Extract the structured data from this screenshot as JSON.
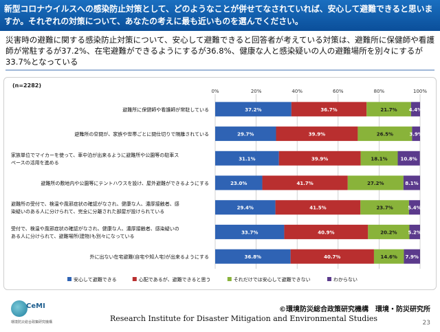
{
  "header": {
    "question": "新型コロナウイルスへの感染防止対策として、どのようなことが併せてなされていれば、安心して避難できると思いますか。それぞれの対策について、あなたの考えに最も近いものを選んでください。"
  },
  "summary": "災害時の避難に関する感染防止対策について、安心して避難できると回答者が考えている対策は、避難所に保健師や看護師が常駐するが37.2%、在宅避難ができるようにするが36.8%、健康な人と感染疑いの人の避難場所を別々にするが33.7%となっている",
  "chart_data": {
    "type": "bar",
    "orientation": "horizontal",
    "stacked": true,
    "sample_note": "(n=2282)",
    "x_ticks": [
      "0%",
      "20%",
      "40%",
      "60%",
      "80%",
      "100%"
    ],
    "xlim": [
      0,
      100
    ],
    "categories": [
      [
        "避難所に保健師や看護師が常駐している"
      ],
      [
        "避難所の空間が、家族や世帯ごとに間仕切りで隔離されている"
      ],
      [
        "家族単位でマイカーを使って、車中泊が出来るように避難所や公園等の駐車ス",
        "ペースの活用を進める"
      ],
      [
        "避難所の敷地内や公園等にテントハウスを設け、屋外避難ができるようにする"
      ],
      [
        "避難所の受付で、検温や風邪症状の確認がなされ、健康な人、濃厚接触者、感",
        "染疑いのある人に分けられて、完全に分離された部屋が設けられている"
      ],
      [
        "受付で、検温や風邪症状の確認がなされ、健康な人、濃厚接触者、感染疑いの",
        "ある人に分けられて、避難場所(建物)も別々になっている"
      ],
      [
        "外に出ない在宅避難(自宅や知人宅)が出来るようにする"
      ]
    ],
    "series": [
      {
        "name": "安心して避難できる",
        "color": "#2f63b4",
        "values": [
          37.2,
          29.7,
          31.1,
          23.0,
          29.4,
          33.7,
          36.8
        ]
      },
      {
        "name": "心配であるが、避難できると思う",
        "color": "#b92f2f",
        "values": [
          36.7,
          39.9,
          39.9,
          41.7,
          41.5,
          40.9,
          40.7
        ]
      },
      {
        "name": "それだけでは安心して避難できない",
        "color": "#89b33a",
        "values": [
          21.7,
          26.5,
          18.1,
          27.2,
          23.7,
          20.2,
          14.6
        ]
      },
      {
        "name": "わからない",
        "color": "#5b3a8c",
        "values": [
          4.4,
          3.9,
          10.8,
          8.1,
          5.4,
          5.2,
          7.9
        ]
      }
    ],
    "value_labels": [
      [
        "37.2%",
        "36.7%",
        "21.7%",
        "4.4%"
      ],
      [
        "29.7%",
        "39.9%",
        "26.5%",
        "3.9%"
      ],
      [
        "31.1%",
        "39.9%",
        "18.1%",
        "10.8%"
      ],
      [
        "23.0%",
        "41.7%",
        "27.2%",
        "8.1%"
      ],
      [
        "29.4%",
        "41.5%",
        "23.7%",
        "5.4%"
      ],
      [
        "33.7%",
        "40.9%",
        "20.2%",
        "5.2%"
      ],
      [
        "36.8%",
        "40.7%",
        "14.6%",
        "7.9%"
      ]
    ],
    "grid": true,
    "legend_position": "bottom"
  },
  "footer": {
    "logo_text": "CeMI",
    "logo_sub": "環境防災総合政策研究機構",
    "copyright": "©環境防災総合政策研究機構　環境・防災研究所",
    "institute": "Research Institute for Disaster Mitigation and Environmental Studies",
    "page_number": "23"
  }
}
